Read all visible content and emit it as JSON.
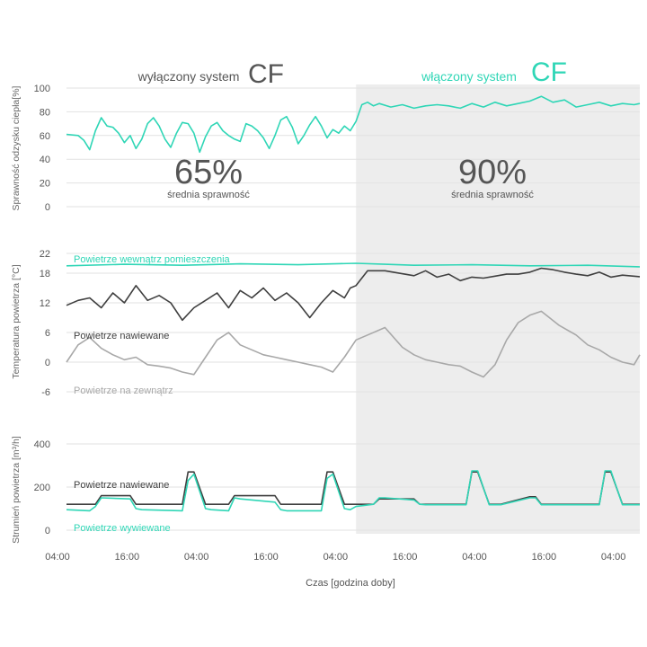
{
  "colors": {
    "teal": "#2fd6b6",
    "dark": "#3f3f3f",
    "light": "#a8a8a8",
    "shade": "#ededed",
    "grid": "#e2e2e2",
    "text": "#555555"
  },
  "header": {
    "off_prefix": "wyłączony system",
    "off_cf": "CF",
    "on_prefix": "włączony system",
    "on_cf": "CF"
  },
  "summary": {
    "off_value": "65%",
    "off_label": "średnia sprawność",
    "on_value": "90%",
    "on_label": "średnia sprawność"
  },
  "xaxis": {
    "label": "Czas [godzina doby]",
    "ticks": [
      "04:00",
      "16:00",
      "04:00",
      "16:00",
      "04:00",
      "16:00",
      "04:00",
      "16:00",
      "04:00"
    ]
  },
  "chart_data": [
    {
      "type": "line",
      "ylabel": "Sprawność odzysku ciepła[%]",
      "yticks": [
        0,
        20,
        40,
        60,
        80,
        100
      ],
      "ylim": [
        0,
        100
      ],
      "x_unit": "hours from 04:00 start",
      "xlim": [
        0,
        99
      ],
      "shaded_from_hour": 50,
      "grid": true,
      "series": [
        {
          "name": "",
          "color": "teal",
          "x": [
            0,
            2,
            3,
            4,
            5,
            6,
            7,
            8,
            9,
            10,
            11,
            12,
            13,
            14,
            15,
            16,
            17,
            18,
            19,
            20,
            21,
            22,
            23,
            24,
            25,
            26,
            27,
            28,
            29,
            30,
            31,
            32,
            33,
            34,
            35,
            36,
            37,
            38,
            39,
            40,
            41,
            42,
            43,
            44,
            45,
            46,
            47,
            48,
            49,
            50,
            51,
            52,
            53,
            54,
            56,
            58,
            60,
            62,
            64,
            66,
            68,
            70,
            72,
            74,
            76,
            78,
            80,
            82,
            84,
            86,
            88,
            90,
            92,
            94,
            96,
            98,
            99
          ],
          "y": [
            61,
            60,
            56,
            48,
            64,
            75,
            68,
            67,
            62,
            54,
            60,
            49,
            57,
            70,
            75,
            68,
            57,
            50,
            62,
            71,
            70,
            62,
            46,
            59,
            68,
            71,
            64,
            60,
            57,
            55,
            70,
            68,
            64,
            58,
            49,
            60,
            73,
            76,
            67,
            53,
            60,
            69,
            76,
            68,
            58,
            65,
            62,
            68,
            64,
            72,
            86,
            88,
            85,
            87,
            84,
            86,
            83,
            85,
            86,
            85,
            83,
            87,
            84,
            88,
            85,
            87,
            89,
            93,
            88,
            90,
            84,
            86,
            88,
            85,
            87,
            86,
            87
          ]
        }
      ],
      "annotations": [
        "65%",
        "średnia sprawność",
        "90%",
        "średnia sprawność"
      ]
    },
    {
      "type": "line",
      "ylabel": "Temperatura powietrza [°C]",
      "yticks": [
        22,
        18,
        12,
        6,
        0,
        -6
      ],
      "ylim": [
        -6,
        22
      ],
      "x_unit": "hours from 04:00 start",
      "xlim": [
        0,
        99
      ],
      "grid": true,
      "series": [
        {
          "name": "Powietrze wewnątrz pomieszczenia",
          "color": "teal",
          "x": [
            0,
            10,
            20,
            30,
            40,
            50,
            55,
            60,
            70,
            80,
            90,
            99
          ],
          "y": [
            19.5,
            19.8,
            19.6,
            19.9,
            19.7,
            20.0,
            19.8,
            19.6,
            19.7,
            19.5,
            19.6,
            19.3
          ]
        },
        {
          "name": "Powietrze nawiewane",
          "color": "dark",
          "x": [
            0,
            2,
            4,
            6,
            8,
            10,
            12,
            14,
            16,
            18,
            20,
            22,
            24,
            26,
            28,
            30,
            32,
            34,
            36,
            38,
            40,
            42,
            44,
            46,
            48,
            49,
            50,
            52,
            55,
            60,
            62,
            64,
            66,
            68,
            70,
            72,
            74,
            76,
            78,
            80,
            82,
            84,
            86,
            88,
            90,
            92,
            94,
            96,
            99
          ],
          "y": [
            11.5,
            12.5,
            13,
            11,
            14,
            12,
            15.5,
            12.5,
            13.5,
            12,
            8.5,
            11,
            12.5,
            14,
            11,
            14.5,
            13,
            15,
            12.5,
            14,
            12,
            9,
            12,
            14.5,
            13,
            15,
            15.5,
            18.5,
            18.5,
            17.5,
            18.5,
            17.2,
            17.8,
            16.5,
            17.2,
            17.0,
            17.4,
            17.8,
            17.8,
            18.2,
            19,
            18.7,
            18.2,
            17.8,
            17.5,
            18.2,
            17.2,
            17.6,
            17.3
          ]
        },
        {
          "name": "Powietrze na zewnątrz",
          "color": "light",
          "x": [
            0,
            2,
            4,
            6,
            8,
            10,
            12,
            14,
            16,
            18,
            20,
            22,
            24,
            26,
            28,
            30,
            32,
            34,
            36,
            38,
            40,
            42,
            44,
            46,
            48,
            50,
            52,
            55,
            58,
            60,
            62,
            64,
            66,
            68,
            70,
            72,
            74,
            76,
            78,
            80,
            82,
            85,
            88,
            90,
            92,
            94,
            96,
            98,
            99
          ],
          "y": [
            0.0,
            3.5,
            5.0,
            2.8,
            1.5,
            0.5,
            1.0,
            -0.5,
            -0.8,
            -1.2,
            -2.0,
            -2.5,
            1.0,
            4.5,
            6.0,
            3.5,
            2.5,
            1.5,
            1.0,
            0.5,
            0.0,
            -0.5,
            -1.0,
            -2.0,
            1.0,
            4.5,
            5.5,
            7.0,
            3.0,
            1.5,
            0.5,
            0.0,
            -0.5,
            -0.8,
            -2.0,
            -3.0,
            -0.5,
            4.5,
            8.0,
            9.5,
            10.3,
            7.5,
            5.5,
            3.5,
            2.5,
            1.0,
            0.0,
            -0.5,
            1.5
          ]
        }
      ]
    },
    {
      "type": "line",
      "ylabel": "Strumień powietrza [m³/h]",
      "yticks": [
        0,
        200,
        400
      ],
      "ylim": [
        0,
        400
      ],
      "x_unit": "hours from 04:00 start",
      "xlim": [
        0,
        99
      ],
      "grid": true,
      "series": [
        {
          "name": "Powietrze nawiewane",
          "color": "dark",
          "x": [
            0,
            4,
            5,
            6,
            11,
            12,
            13,
            20,
            21,
            22,
            24,
            25,
            28,
            29,
            30,
            36,
            37,
            38,
            44,
            45,
            46,
            48,
            49,
            50,
            53,
            54,
            55,
            60,
            61,
            62,
            69,
            70,
            71,
            73,
            74,
            75,
            80,
            81,
            82,
            87,
            88,
            92,
            93,
            94,
            96,
            97,
            98,
            99
          ],
          "y": [
            120,
            120,
            120,
            160,
            160,
            120,
            120,
            120,
            270,
            270,
            120,
            120,
            120,
            160,
            160,
            160,
            120,
            120,
            120,
            270,
            270,
            120,
            120,
            120,
            120,
            145,
            145,
            145,
            120,
            120,
            120,
            270,
            270,
            120,
            120,
            120,
            155,
            155,
            120,
            120,
            120,
            120,
            270,
            270,
            120,
            120,
            120,
            120
          ]
        },
        {
          "name": "Powietrze wywiewane",
          "color": "teal",
          "x": [
            0,
            4,
            5,
            6,
            11,
            12,
            13,
            20,
            21,
            22,
            24,
            25,
            28,
            29,
            30,
            36,
            37,
            38,
            44,
            45,
            46,
            48,
            49,
            50,
            53,
            54,
            55,
            60,
            61,
            62,
            69,
            70,
            71,
            73,
            74,
            75,
            80,
            81,
            82,
            87,
            88,
            92,
            93,
            94,
            96,
            97,
            98,
            99
          ],
          "y": [
            95,
            90,
            110,
            150,
            145,
            100,
            95,
            90,
            230,
            260,
            100,
            95,
            90,
            150,
            145,
            130,
            95,
            90,
            90,
            240,
            260,
            100,
            95,
            110,
            120,
            150,
            150,
            140,
            120,
            118,
            118,
            275,
            275,
            118,
            118,
            118,
            150,
            150,
            118,
            118,
            118,
            118,
            275,
            275,
            118,
            118,
            118,
            118
          ]
        }
      ]
    }
  ]
}
